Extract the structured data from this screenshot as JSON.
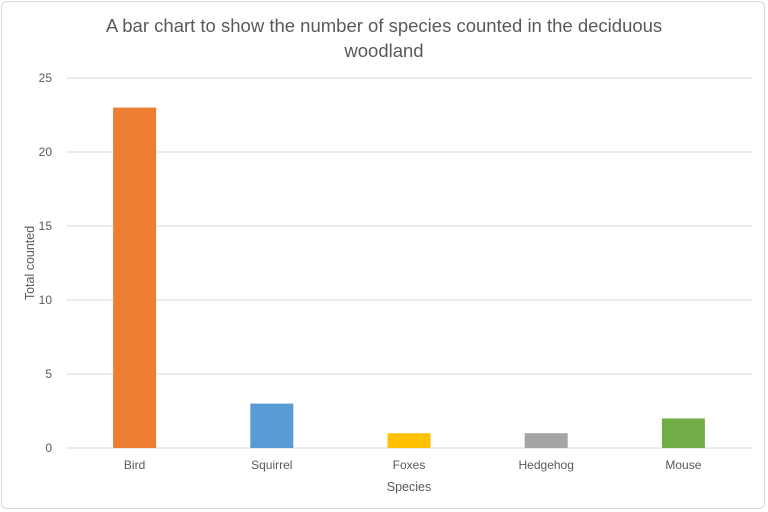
{
  "chart_data": {
    "type": "bar",
    "title_lines": [
      "A bar chart to show the number of species counted in the deciduous",
      "woodland"
    ],
    "xlabel": "Species",
    "ylabel": "Total counted",
    "categories": [
      "Bird",
      "Squirrel",
      "Foxes",
      "Hedgehog",
      "Mouse"
    ],
    "values": [
      23,
      3,
      1,
      1,
      2
    ],
    "colors": [
      "#ED7D31",
      "#5B9BD5",
      "#FFC000",
      "#A5A5A5",
      "#70AD47"
    ],
    "ylim": [
      0,
      25
    ],
    "yticks": [
      0,
      5,
      10,
      15,
      20,
      25
    ],
    "grid": true,
    "legend": "none"
  }
}
